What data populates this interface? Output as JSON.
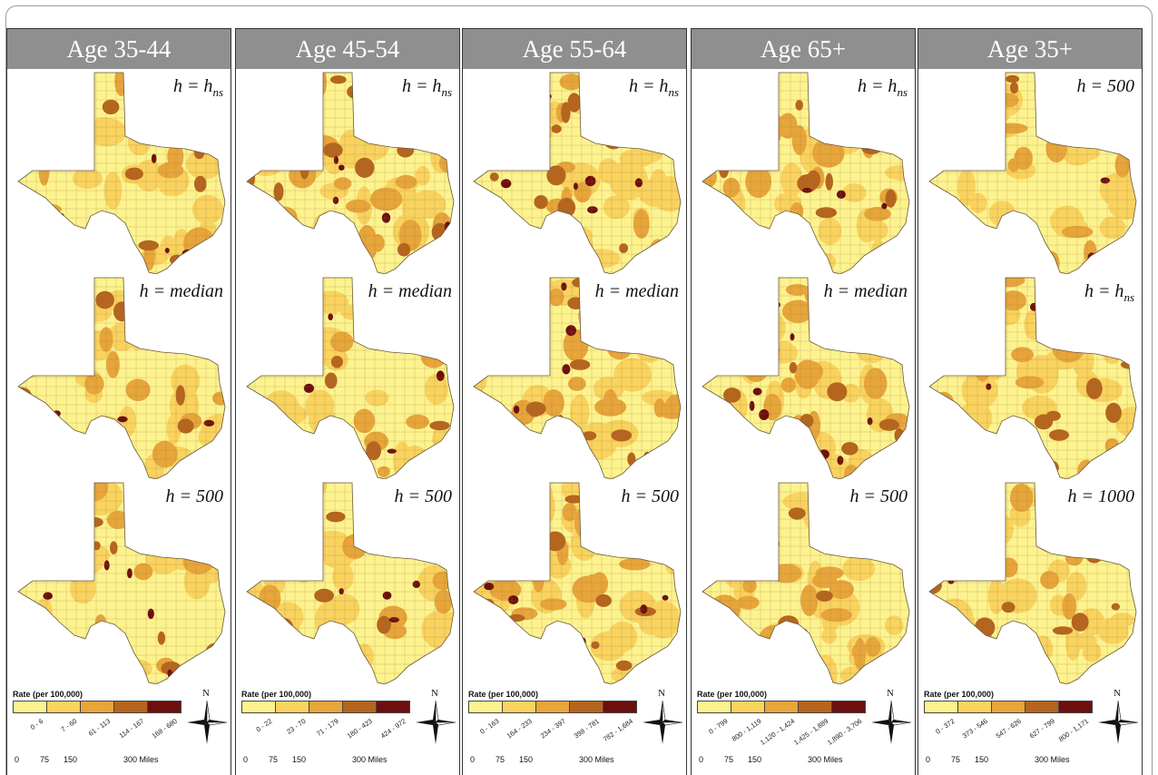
{
  "colors": {
    "class1": "#fdf38e",
    "class2": "#f9d35e",
    "class3": "#e7a53a",
    "class4": "#b5651d",
    "class5": "#6e0f0f",
    "header_bg": "#8f8f8f",
    "county_line": "#9a7c4a"
  },
  "legend_title": "Rate (per 100,000)",
  "scale_bar": {
    "ticks": [
      "0",
      "75",
      "150"
    ],
    "end": "300 Miles"
  },
  "north_label": "N",
  "columns": [
    {
      "header": "Age 35-44",
      "panels": [
        {
          "label": "h = h",
          "sub": "ns"
        },
        {
          "label": "h = median",
          "sub": ""
        },
        {
          "label": "h = 500",
          "sub": ""
        }
      ],
      "classes": [
        "0 - 6",
        "7 - 60",
        "61 - 113",
        "114 - 167",
        "168 - 680"
      ]
    },
    {
      "header": "Age 45-54",
      "panels": [
        {
          "label": "h = h",
          "sub": "ns"
        },
        {
          "label": "h = median",
          "sub": ""
        },
        {
          "label": "h = 500",
          "sub": ""
        }
      ],
      "classes": [
        "0 - 22",
        "23 - 70",
        "71 - 179",
        "180 - 423",
        "424 - 972"
      ]
    },
    {
      "header": "Age 55-64",
      "panels": [
        {
          "label": "h = h",
          "sub": "ns"
        },
        {
          "label": "h = median",
          "sub": ""
        },
        {
          "label": "h = 500",
          "sub": ""
        }
      ],
      "classes": [
        "0 - 163",
        "164 - 233",
        "234 - 397",
        "398 - 781",
        "782 - 1,684"
      ]
    },
    {
      "header": "Age 65+",
      "panels": [
        {
          "label": "h = h",
          "sub": "ns"
        },
        {
          "label": "h = median",
          "sub": ""
        },
        {
          "label": "h = 500",
          "sub": ""
        }
      ],
      "classes": [
        "0 - 799",
        "800 - 1,119",
        "1,120 - 1,424",
        "1,425 - 1,889",
        "1,890 - 3,706"
      ]
    },
    {
      "header": "Age 35+",
      "panels": [
        {
          "label": "h = 500",
          "sub": ""
        },
        {
          "label": "h = h",
          "sub": "ns"
        },
        {
          "label": "h = 1000",
          "sub": ""
        }
      ],
      "classes": [
        "0 - 372",
        "373 - 546",
        "547 - 626",
        "627 - 799",
        "800 - 1,171"
      ]
    }
  ]
}
